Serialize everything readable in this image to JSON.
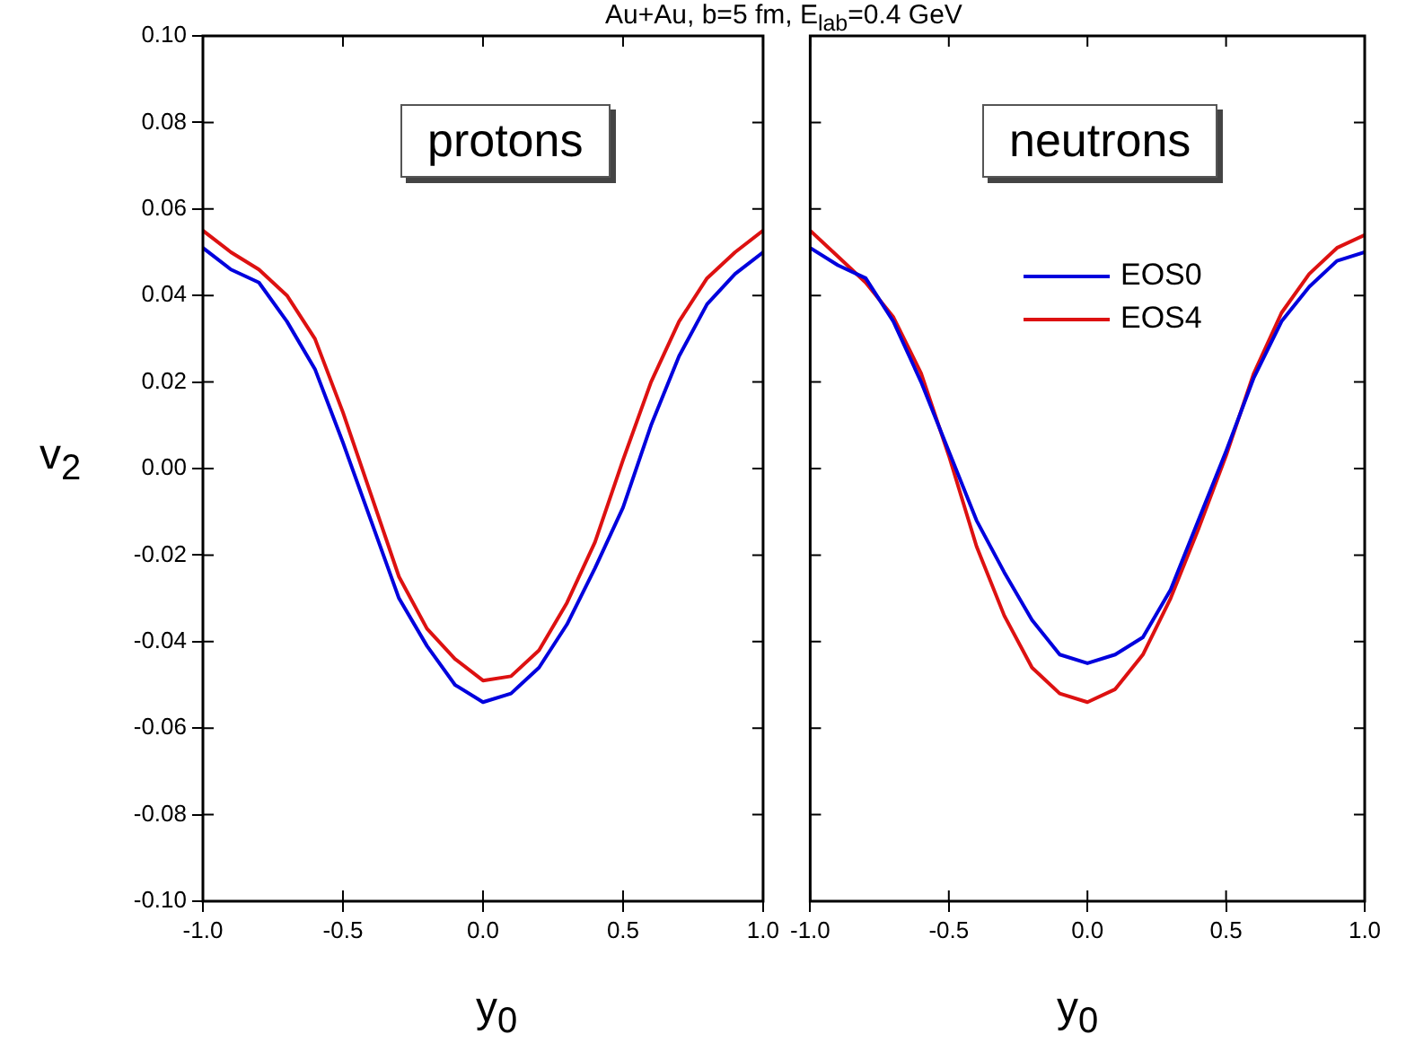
{
  "chart_data": [
    {
      "type": "line",
      "title": "Au+Au, b=5 fm, E$_{lab}$=0.4 GeV",
      "xlabel": "y$_{0}$",
      "ylabel": "v$_{2}$",
      "annotations": [
        "protons"
      ],
      "x": [
        -1,
        -0.9,
        -0.8,
        -0.7,
        -0.6,
        -0.5,
        -0.4,
        -0.3,
        -0.2,
        -0.1,
        0,
        0.1,
        0.2,
        0.3,
        0.4,
        0.5,
        0.6,
        0.7,
        0.8,
        0.9,
        1.0
      ],
      "series": [
        {
          "color": "#0000dd",
          "values": [
            0.051,
            0.046,
            0.043,
            0.034,
            0.023,
            0.006,
            -0.012,
            -0.03,
            -0.041,
            -0.05,
            -0.054,
            -0.052,
            -0.046,
            -0.036,
            -0.023,
            -0.009,
            0.01,
            0.026,
            0.038,
            0.045,
            0.05
          ]
        },
        {
          "color": "#dd1111",
          "values": [
            0.055,
            0.05,
            0.046,
            0.04,
            0.03,
            0.013,
            -0.006,
            -0.025,
            -0.037,
            -0.044,
            -0.049,
            -0.048,
            -0.042,
            -0.031,
            -0.017,
            0.002,
            0.02,
            0.034,
            0.044,
            0.05,
            0.055
          ]
        }
      ],
      "xlim": [
        -1,
        1
      ],
      "xticks": [
        {
          "value": -1,
          "label": "-1.0"
        },
        {
          "value": -0.5,
          "label": "-0.5"
        },
        {
          "value": 0,
          "label": "0.0"
        },
        {
          "value": 0.5,
          "label": "0.5"
        },
        {
          "value": 1,
          "label": "1.0"
        }
      ],
      "ylim": [
        -0.1,
        0.1
      ],
      "yticks": [
        {
          "value": -0.1,
          "label": "-0.10"
        },
        {
          "value": -0.08,
          "label": "-0.08"
        },
        {
          "value": -0.06,
          "label": "-0.06"
        },
        {
          "value": -0.04,
          "label": "-0.04"
        },
        {
          "value": -0.02,
          "label": "-0.02"
        },
        {
          "value": 0,
          "label": "0.00"
        },
        {
          "value": 0.02,
          "label": "0.02"
        },
        {
          "value": 0.04,
          "label": "0.04"
        },
        {
          "value": 0.06,
          "label": "0.06"
        },
        {
          "value": 0.08,
          "label": "0.08"
        },
        {
          "value": 0.1,
          "label": "0.10"
        }
      ],
      "grid": false,
      "marker": "none",
      "line_style": "solid"
    },
    {
      "type": "line",
      "xlabel": "y$_{0}$",
      "annotations": [
        "neutrons"
      ],
      "legend": "top right",
      "tick_labels": "x",
      "x": [
        -1,
        -0.9,
        -0.8,
        -0.7,
        -0.6,
        -0.5,
        -0.4,
        -0.3,
        -0.2,
        -0.1,
        0,
        0.1,
        0.2,
        0.3,
        0.4,
        0.5,
        0.6,
        0.7,
        0.8,
        0.9,
        1.0
      ],
      "series": [
        {
          "name": "EOS0",
          "color": "#0000dd",
          "values": [
            0.051,
            0.047,
            0.044,
            0.034,
            0.02,
            0.004,
            -0.012,
            -0.024,
            -0.035,
            -0.043,
            -0.045,
            -0.043,
            -0.039,
            -0.028,
            -0.012,
            0.004,
            0.021,
            0.034,
            0.042,
            0.048,
            0.05
          ]
        },
        {
          "name": "EOS4",
          "color": "#dd1111",
          "values": [
            0.055,
            0.049,
            0.043,
            0.035,
            0.022,
            0.003,
            -0.018,
            -0.034,
            -0.046,
            -0.052,
            -0.054,
            -0.051,
            -0.043,
            -0.03,
            -0.014,
            0.003,
            0.022,
            0.036,
            0.045,
            0.051,
            0.054
          ]
        }
      ],
      "xlim": [
        -1,
        1
      ],
      "xticks": [
        {
          "value": -1,
          "label": "-1.0"
        },
        {
          "value": -0.5,
          "label": "-0.5"
        },
        {
          "value": 0,
          "label": "0.0"
        },
        {
          "value": 0.5,
          "label": "0.5"
        },
        {
          "value": 1,
          "label": "1.0"
        }
      ],
      "ylim": [
        -0.1,
        0.1
      ],
      "yticks": [
        -0.1,
        -0.08,
        -0.06,
        -0.04,
        -0.02,
        0,
        0.02,
        0.04,
        0.06,
        0.08,
        0.1
      ],
      "grid": false,
      "marker": "none",
      "line_style": "solid"
    }
  ]
}
